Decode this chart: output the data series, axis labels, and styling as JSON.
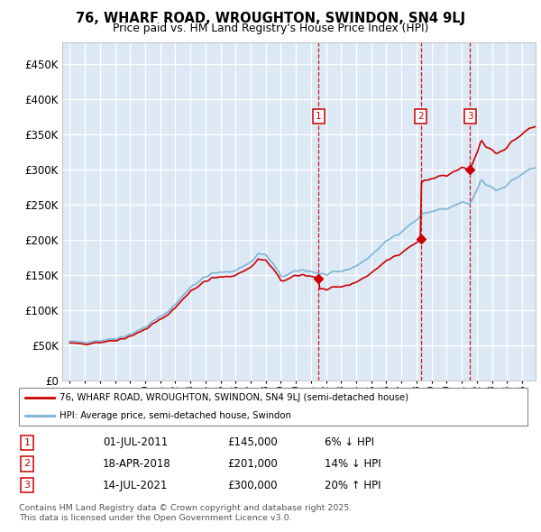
{
  "title": "76, WHARF ROAD, WROUGHTON, SWINDON, SN4 9LJ",
  "subtitle": "Price paid vs. HM Land Registry's House Price Index (HPI)",
  "legend_line1": "76, WHARF ROAD, WROUGHTON, SWINDON, SN4 9LJ (semi-detached house)",
  "legend_line2": "HPI: Average price, semi-detached house, Swindon",
  "sale_color": "#cc0000",
  "hpi_color": "#7aafd4",
  "bg_color": "#dce9f5",
  "grid_color": "#ffffff",
  "transactions": [
    {
      "num": 1,
      "date": "01-JUL-2011",
      "price": 145000,
      "info": "6% ↓ HPI",
      "t": 2011.5
    },
    {
      "num": 2,
      "date": "18-APR-2018",
      "price": 201000,
      "info": "14% ↓ HPI",
      "t": 2018.29
    },
    {
      "num": 3,
      "date": "14-JUL-2021",
      "price": 300000,
      "info": "20% ↑ HPI",
      "t": 2021.54
    }
  ],
  "footnote_line1": "Contains HM Land Registry data © Crown copyright and database right 2025.",
  "footnote_line2": "This data is licensed under the Open Government Licence v3.0.",
  "ylim": [
    0,
    480000
  ],
  "yticks": [
    0,
    50000,
    100000,
    150000,
    200000,
    250000,
    300000,
    350000,
    400000,
    450000
  ],
  "xlim_left": 1994.5,
  "xlim_right": 2025.9
}
